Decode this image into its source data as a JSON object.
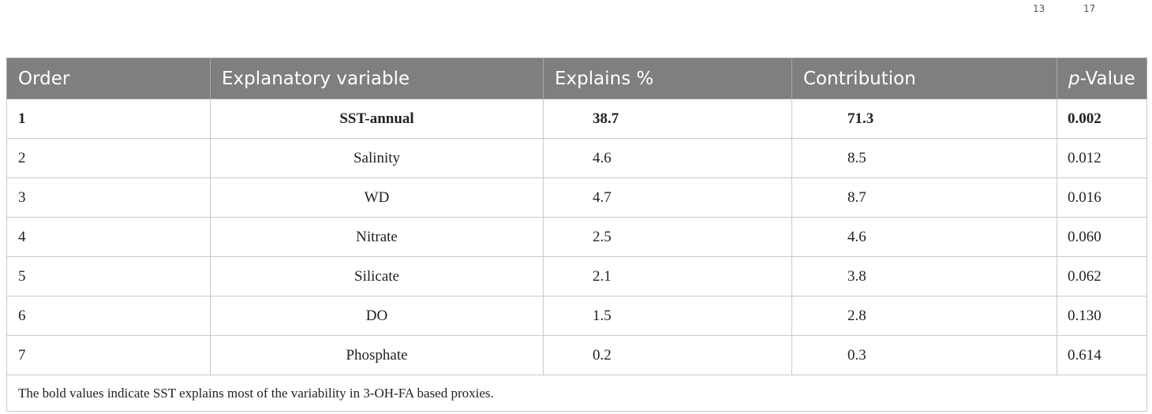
{
  "page_numbers": [
    "13",
    "17"
  ],
  "table": {
    "headers": {
      "order": "Order",
      "variable": "Explanatory variable",
      "explains": "Explains %",
      "contribution": "Contribution",
      "p_value_italic": "p",
      "p_value_rest": "-Value"
    },
    "rows": [
      {
        "order": "1",
        "variable": "SST-annual",
        "explains": "38.7",
        "contribution": "71.3",
        "p_value": "0.002",
        "bold": true
      },
      {
        "order": "2",
        "variable": "Salinity",
        "explains": "4.6",
        "contribution": "8.5",
        "p_value": "0.012",
        "bold": false
      },
      {
        "order": "3",
        "variable": "WD",
        "explains": "4.7",
        "contribution": "8.7",
        "p_value": "0.016",
        "bold": false
      },
      {
        "order": "4",
        "variable": "Nitrate",
        "explains": "2.5",
        "contribution": "4.6",
        "p_value": "0.060",
        "bold": false
      },
      {
        "order": "5",
        "variable": "Silicate",
        "explains": "2.1",
        "contribution": "3.8",
        "p_value": "0.062",
        "bold": false
      },
      {
        "order": "6",
        "variable": "DO",
        "explains": "1.5",
        "contribution": "2.8",
        "p_value": "0.130",
        "bold": false
      },
      {
        "order": "7",
        "variable": "Phosphate",
        "explains": "0.2",
        "contribution": "0.3",
        "p_value": "0.614",
        "bold": false
      }
    ],
    "footnote": "The bold values indicate SST explains most of the variability in 3-OH-FA based proxies."
  }
}
